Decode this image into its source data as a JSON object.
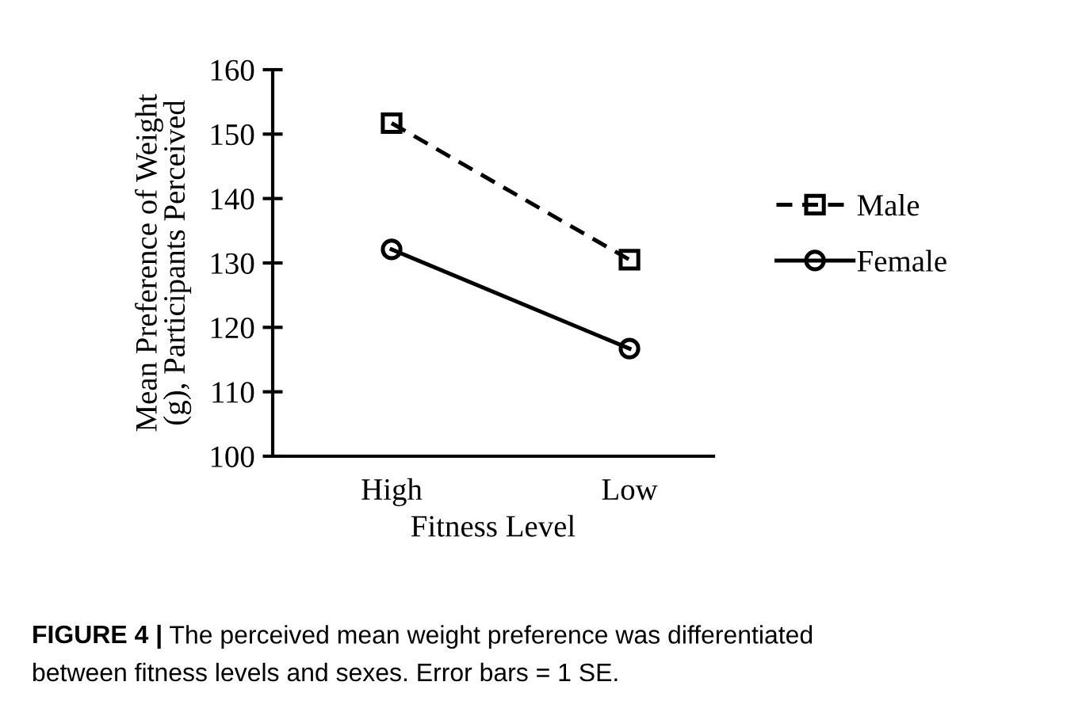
{
  "chart_data": {
    "type": "line",
    "xlabel": "Fitness Level",
    "ylabel": "Mean Preference of Weight\n(g), Participants Perceived",
    "categories": [
      "High",
      "Low"
    ],
    "series": [
      {
        "name": "Male",
        "color": "#000000",
        "values": [
          151.7,
          130.5
        ],
        "marker": "square",
        "line_style": "dashed"
      },
      {
        "name": "Female",
        "color": "#000000",
        "values": [
          132.1,
          116.7
        ],
        "marker": "circle",
        "line_style": "solid"
      }
    ],
    "ylim": [
      100,
      160
    ],
    "yticks": [
      100,
      110,
      120,
      130,
      140,
      150,
      160
    ],
    "grid": false,
    "legend": "right",
    "annotations": [
      "FIGURE 4 |",
      "The perceived mean weight preference was differentiated",
      "between fitness levels and sexes. Error bars = 1 SE."
    ]
  }
}
